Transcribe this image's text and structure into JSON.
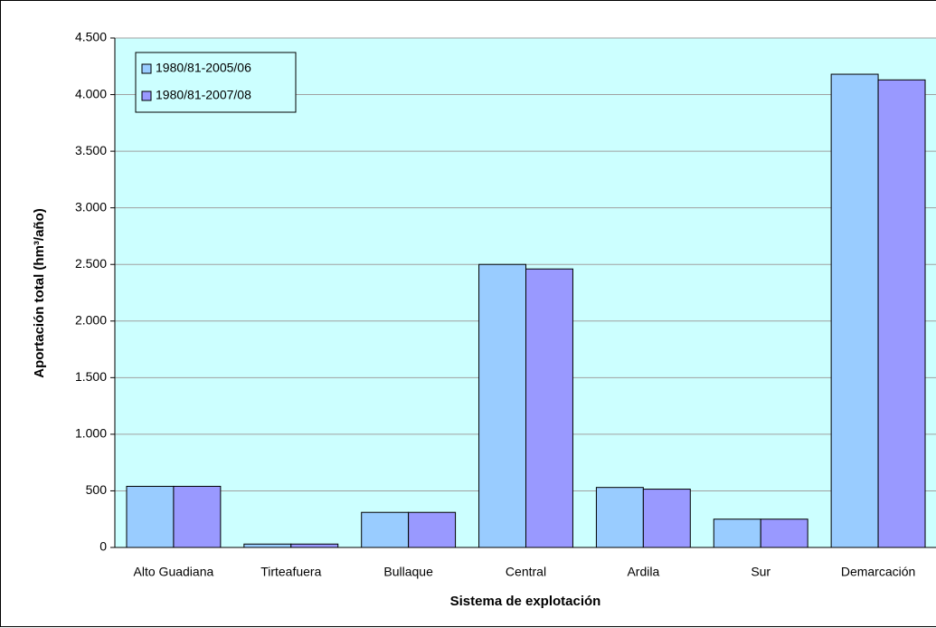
{
  "chart_data": {
    "type": "bar",
    "x_label": "Sistema de explotación",
    "y_label": "Aportación total (hm³/año)",
    "categories": [
      "Alto Guadiana",
      "Tirteafuera",
      "Bullaque",
      "Central",
      "Ardila",
      "Sur",
      "Demarcación"
    ],
    "series": [
      {
        "name": "1980/81-2005/06",
        "color": "#99ccff",
        "values": [
          540,
          30,
          310,
          2500,
          530,
          250,
          4180
        ]
      },
      {
        "name": "1980/81-2007/08",
        "color": "#9999ff",
        "values": [
          540,
          30,
          310,
          2460,
          515,
          250,
          4130
        ]
      }
    ],
    "ylim": [
      0,
      4500
    ],
    "yticks": [
      0,
      500,
      {
        "value": 1000,
        "label": "1.000"
      },
      {
        "value": 1500,
        "label": "1.500"
      },
      {
        "value": 2000,
        "label": "2.000"
      },
      {
        "value": 2500,
        "label": "2.500"
      },
      {
        "value": 3000,
        "label": "3.000"
      },
      {
        "value": 3500,
        "label": "3.500"
      },
      {
        "value": 4000,
        "label": "4.000"
      },
      {
        "value": 4500,
        "label": "4.500"
      }
    ],
    "grid": true,
    "legend": "upper left",
    "plot_background": "#ccffff"
  }
}
